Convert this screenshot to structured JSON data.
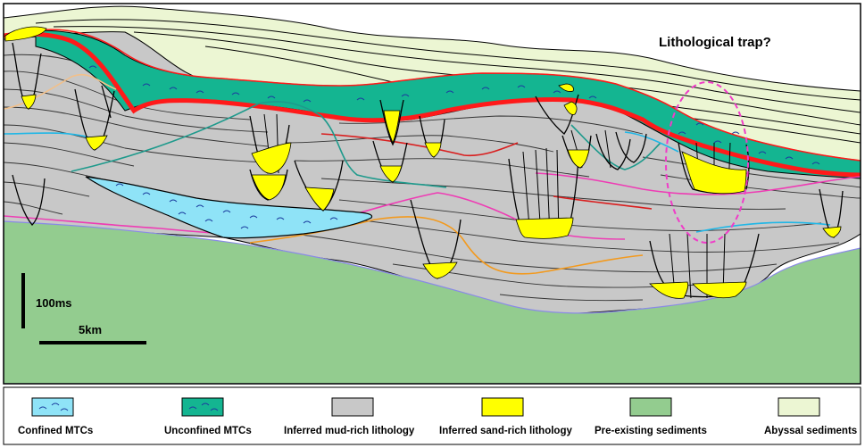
{
  "annotations": {
    "trap_label": "Lithological trap?",
    "vertical_scale": "100ms",
    "horizontal_scale": "5km"
  },
  "legend": [
    {
      "label": "Confined MTCs",
      "color": "#8fe3f7",
      "symbol": "dashed-wave"
    },
    {
      "label": "Unconfined MTCs",
      "color": "#14b591",
      "symbol": "dashed-wave"
    },
    {
      "label": "Inferred mud-rich lithology",
      "color": "#c8c8c8",
      "symbol": "solid"
    },
    {
      "label": "Inferred sand-rich lithology",
      "color": "#ffff00",
      "symbol": "solid"
    },
    {
      "label": "Pre-existing sediments",
      "color": "#93cc8f",
      "symbol": "solid"
    },
    {
      "label": "Abyssal sediments",
      "color": "#ecf6d3",
      "symbol": "solid"
    }
  ],
  "colors": {
    "confined_mtc": "#8fe3f7",
    "unconfined_mtc": "#14b591",
    "mud": "#c8c8c8",
    "sand": "#ffff00",
    "pre_existing": "#93cc8f",
    "abyssal": "#ecf6d3",
    "main_horizon": "#ff1a1a",
    "trap_outline": "#f03cc8"
  }
}
